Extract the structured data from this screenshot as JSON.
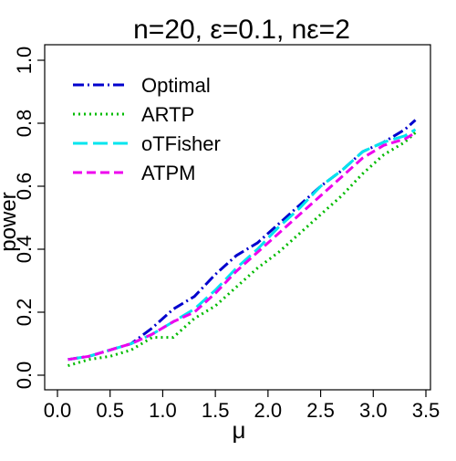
{
  "chart_data": {
    "type": "line",
    "title": "n=20, ε=0.1, nε=2",
    "xlabel": "μ",
    "ylabel": "power",
    "xlim": [
      0,
      3.5
    ],
    "ylim": [
      0,
      1.0
    ],
    "x_ticks": [
      0.0,
      0.5,
      1.0,
      1.5,
      2.0,
      2.5,
      3.0,
      3.5
    ],
    "x_tick_labels": [
      "0.0",
      "0.5",
      "1.0",
      "1.5",
      "2.0",
      "2.5",
      "3.0",
      "3.5"
    ],
    "y_ticks": [
      0.0,
      0.2,
      0.4,
      0.6,
      0.8,
      1.0
    ],
    "y_tick_labels": [
      "0.0",
      "0.2",
      "0.4",
      "0.6",
      "0.8",
      "1.0"
    ],
    "grid": false,
    "legend_position": "top-left",
    "x": [
      0.1,
      0.3,
      0.5,
      0.7,
      0.9,
      1.1,
      1.3,
      1.5,
      1.7,
      1.9,
      2.1,
      2.3,
      2.5,
      2.7,
      2.9,
      3.1,
      3.3,
      3.4
    ],
    "series": [
      {
        "name": "Optimal",
        "color": "#0000cd",
        "dash": "12,4,2,4",
        "values": [
          0.05,
          0.06,
          0.08,
          0.1,
          0.15,
          0.21,
          0.25,
          0.32,
          0.38,
          0.42,
          0.48,
          0.54,
          0.6,
          0.65,
          0.71,
          0.74,
          0.78,
          0.81
        ]
      },
      {
        "name": "ARTP",
        "color": "#00bb00",
        "dash": "2,4",
        "values": [
          0.03,
          0.05,
          0.06,
          0.08,
          0.12,
          0.12,
          0.18,
          0.22,
          0.28,
          0.34,
          0.39,
          0.45,
          0.51,
          0.57,
          0.64,
          0.7,
          0.74,
          0.77
        ]
      },
      {
        "name": "oTFisher",
        "color": "#00e5ee",
        "dash": "16,6",
        "values": [
          0.05,
          0.06,
          0.08,
          0.1,
          0.13,
          0.17,
          0.21,
          0.27,
          0.34,
          0.4,
          0.47,
          0.53,
          0.6,
          0.65,
          0.71,
          0.74,
          0.76,
          0.78
        ]
      },
      {
        "name": "ATPM",
        "color": "#ee00ee",
        "dash": "10,5",
        "values": [
          0.05,
          0.06,
          0.08,
          0.1,
          0.13,
          0.17,
          0.2,
          0.26,
          0.33,
          0.39,
          0.45,
          0.51,
          0.57,
          0.63,
          0.69,
          0.73,
          0.75,
          0.77
        ]
      }
    ]
  }
}
